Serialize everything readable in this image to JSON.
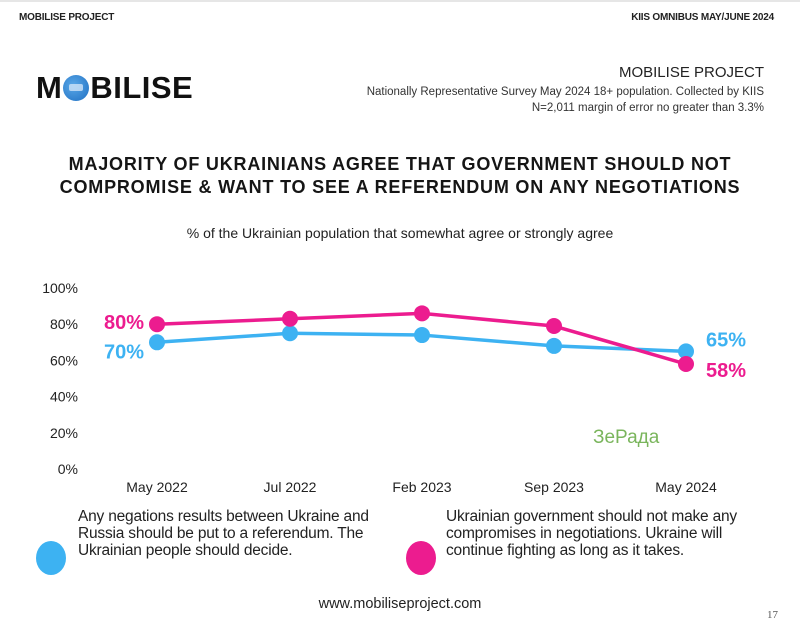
{
  "header": {
    "left": "MOBILISE PROJECT",
    "right": "KIIS OMNIBUS MAY/JUNE 2024"
  },
  "logo": {
    "text_before": "M",
    "text_after": "BILISE",
    "icon": "globe-icon"
  },
  "project": {
    "title": "MOBILISE PROJECT",
    "line1": "Nationally Representative Survey May 2024 18+ population. Collected by KIIS",
    "line2": "N=2,011 margin of error no greater than 3.3%"
  },
  "watermark": "ЗеРада",
  "footer": {
    "url": "www.mobiliseproject.com",
    "page_number": "17"
  },
  "chart_data": {
    "type": "line",
    "title": "MAJORITY OF UKRAINIANS AGREE THAT GOVERNMENT SHOULD NOT COMPROMISE & WANT TO SEE A REFERENDUM ON ANY NEGOTIATIONS",
    "subtitle": "% of the Ukrainian population that somewhat agree or strongly agree",
    "xlabel": "",
    "ylabel": "",
    "categories": [
      "May 2022",
      "Jul 2022",
      "Feb 2023",
      "Sep 2023",
      "May 2024"
    ],
    "ylim": [
      0,
      100
    ],
    "yticks": [
      0,
      20,
      40,
      60,
      80,
      100
    ],
    "ytick_labels": [
      "0%",
      "20%",
      "40%",
      "60%",
      "80%",
      "100%"
    ],
    "grid": false,
    "legend_position": "bottom",
    "series": [
      {
        "name": "Any negations results between Ukraine and Russia should be put to a referendum. The Ukrainian people should decide.",
        "color": "#3db2f2",
        "values": [
          70,
          75,
          74,
          68,
          65
        ],
        "start_label": "70%",
        "end_label": "65%"
      },
      {
        "name": "Ukrainian government should not make any compromises in negotiations. Ukraine will continue fighting as long as it takes.",
        "color": "#ec1c8f",
        "values": [
          80,
          83,
          86,
          79,
          58
        ],
        "start_label": "80%",
        "end_label": "58%"
      }
    ]
  }
}
